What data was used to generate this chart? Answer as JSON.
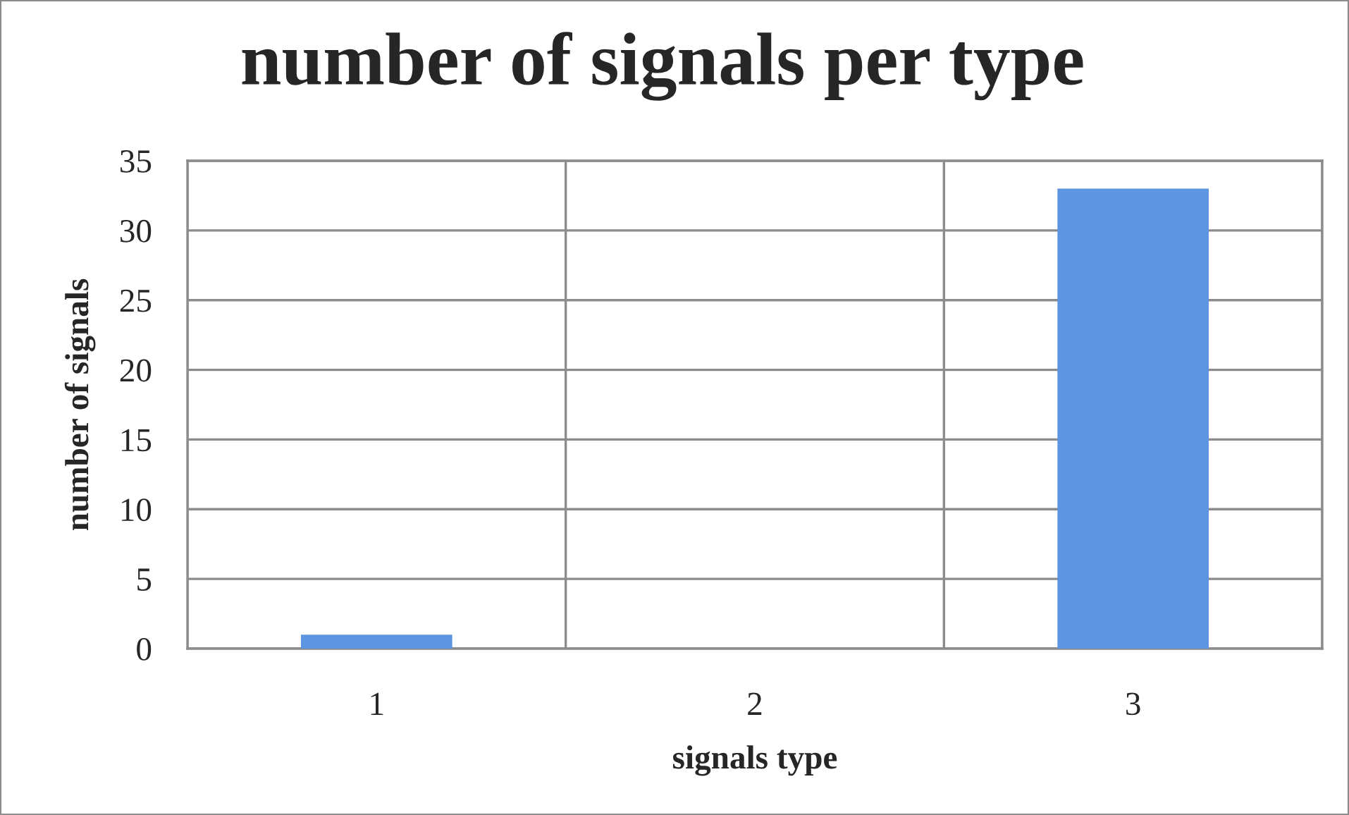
{
  "chart_data": {
    "type": "bar",
    "title": "number of signals per type",
    "xlabel": "signals type",
    "ylabel": "number of signals",
    "categories": [
      "1",
      "2",
      "3"
    ],
    "values": [
      1,
      0,
      33
    ],
    "color": "#5e95e0",
    "ylim": [
      0,
      35
    ],
    "yticks": [
      0,
      5,
      10,
      15,
      20,
      25,
      30,
      35
    ],
    "grid": true
  }
}
